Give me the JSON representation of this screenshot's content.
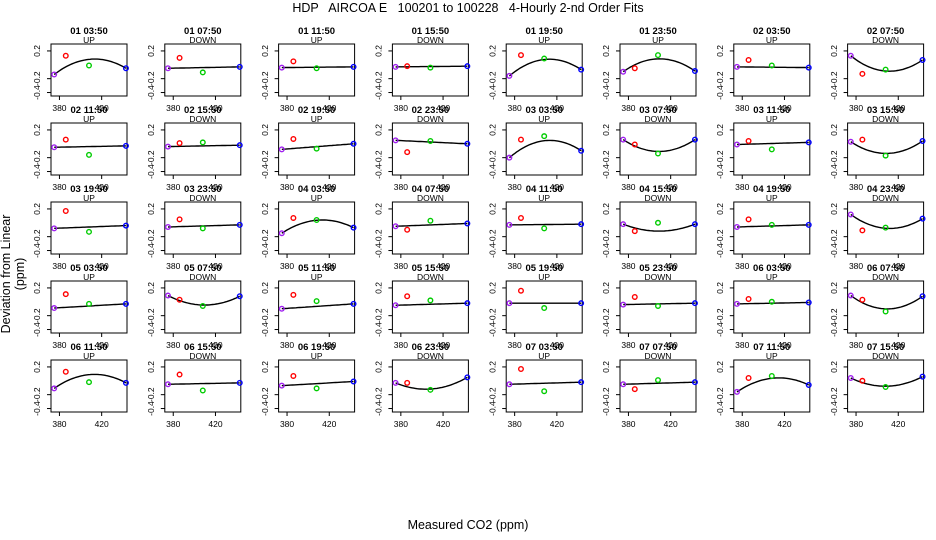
{
  "figure": {
    "title": "HDP   AIRCOA E   100201 to 100228   4-Hourly 2-nd Order Fits",
    "xlabel": "Measured CO2 (ppm)",
    "ylabel": "Deviation from Linear (ppm)"
  },
  "colors": {
    "axis": "#000000",
    "curve": "#000000",
    "point_low": "#a020f0",
    "point_mid_low": "#ff0000",
    "point_mid_high": "#00cc00",
    "point_high": "#0000ff"
  },
  "chart_data": {
    "type": "scatter",
    "layout": "grid 5 rows x 8 columns of small multiples",
    "x_ticks": [
      380,
      420
    ],
    "y_ticks": [
      0.2,
      -0.2,
      -0.4
    ],
    "xlim": [
      372,
      444
    ],
    "ylim": [
      -0.45,
      0.3
    ],
    "x_standards": [
      375,
      386,
      408,
      443
    ],
    "series_names": [
      "low",
      "mid_low",
      "mid_high",
      "high"
    ],
    "panels": [
      {
        "title": "01 03:50",
        "direction": "UP",
        "y": [
          -0.14,
          0.13,
          -0.01,
          -0.05
        ],
        "curvature": -1
      },
      {
        "title": "01 07:50",
        "direction": "DOWN",
        "y": [
          -0.05,
          0.1,
          -0.11,
          -0.03
        ],
        "curvature": 0
      },
      {
        "title": "01 11:50",
        "direction": "UP",
        "y": [
          -0.04,
          0.05,
          -0.05,
          -0.03
        ],
        "curvature": 0
      },
      {
        "title": "01 15:50",
        "direction": "DOWN",
        "y": [
          -0.03,
          -0.02,
          -0.04,
          -0.02
        ],
        "curvature": 0
      },
      {
        "title": "01 19:50",
        "direction": "UP",
        "y": [
          -0.16,
          0.14,
          0.09,
          -0.07
        ],
        "curvature": -1
      },
      {
        "title": "01 23:50",
        "direction": "UP",
        "y": [
          -0.1,
          -0.05,
          0.14,
          -0.09
        ],
        "curvature": -1
      },
      {
        "title": "02 03:50",
        "direction": "UP",
        "y": [
          -0.03,
          0.07,
          -0.01,
          -0.04
        ],
        "curvature": 0
      },
      {
        "title": "02 07:50",
        "direction": "DOWN",
        "y": [
          0.13,
          -0.13,
          -0.07,
          0.07
        ],
        "curvature": 1
      },
      {
        "title": "02 11:50",
        "direction": "UP",
        "y": [
          -0.05,
          0.06,
          -0.16,
          -0.03
        ],
        "curvature": 0
      },
      {
        "title": "02 15:50",
        "direction": "DOWN",
        "y": [
          -0.04,
          0.01,
          0.02,
          -0.02
        ],
        "curvature": 0
      },
      {
        "title": "02 19:50",
        "direction": "UP",
        "y": [
          -0.08,
          0.07,
          -0.07,
          0.0
        ],
        "curvature": 0
      },
      {
        "title": "02 23:50",
        "direction": "DOWN",
        "y": [
          0.05,
          -0.12,
          0.04,
          0.0
        ],
        "curvature": 0
      },
      {
        "title": "03 03:50",
        "direction": "UP",
        "y": [
          -0.2,
          0.06,
          0.11,
          -0.1
        ],
        "curvature": -1
      },
      {
        "title": "03 07:50",
        "direction": "DOWN",
        "y": [
          0.06,
          -0.01,
          -0.14,
          0.06
        ],
        "curvature": 1
      },
      {
        "title": "03 11:50",
        "direction": "UP",
        "y": [
          -0.01,
          0.04,
          -0.08,
          0.02
        ],
        "curvature": 0
      },
      {
        "title": "03 15:50",
        "direction": "DOWN",
        "y": [
          0.03,
          0.06,
          -0.17,
          0.04
        ],
        "curvature": 1
      },
      {
        "title": "03 19:50",
        "direction": "UP",
        "y": [
          -0.08,
          0.17,
          -0.13,
          -0.04
        ],
        "curvature": 0
      },
      {
        "title": "03 23:50",
        "direction": "DOWN",
        "y": [
          -0.06,
          0.05,
          -0.08,
          -0.03
        ],
        "curvature": 0
      },
      {
        "title": "04 03:50",
        "direction": "UP",
        "y": [
          -0.15,
          0.07,
          0.04,
          -0.07
        ],
        "curvature": -1
      },
      {
        "title": "04 07:50",
        "direction": "DOWN",
        "y": [
          -0.05,
          -0.1,
          0.03,
          -0.01
        ],
        "curvature": 0
      },
      {
        "title": "04 11:50",
        "direction": "UP",
        "y": [
          -0.03,
          0.07,
          -0.08,
          -0.02
        ],
        "curvature": 0
      },
      {
        "title": "04 15:50",
        "direction": "DOWN",
        "y": [
          -0.02,
          -0.12,
          0.0,
          -0.02
        ],
        "curvature": 1
      },
      {
        "title": "04 19:50",
        "direction": "UP",
        "y": [
          -0.06,
          0.05,
          -0.03,
          -0.03
        ],
        "curvature": 0
      },
      {
        "title": "04 23:50",
        "direction": "DOWN",
        "y": [
          0.12,
          -0.11,
          -0.07,
          0.06
        ],
        "curvature": 1
      },
      {
        "title": "05 03:50",
        "direction": "UP",
        "y": [
          -0.09,
          0.11,
          -0.03,
          -0.03
        ],
        "curvature": 0
      },
      {
        "title": "05 07:50",
        "direction": "DOWN",
        "y": [
          0.09,
          0.03,
          -0.06,
          0.08
        ],
        "curvature": 1
      },
      {
        "title": "05 11:50",
        "direction": "UP",
        "y": [
          -0.1,
          0.1,
          0.01,
          -0.03
        ],
        "curvature": 0
      },
      {
        "title": "05 15:50",
        "direction": "DOWN",
        "y": [
          -0.05,
          0.08,
          0.02,
          -0.02
        ],
        "curvature": 0
      },
      {
        "title": "05 19:50",
        "direction": "UP",
        "y": [
          -0.02,
          0.16,
          -0.09,
          -0.02
        ],
        "curvature": 0
      },
      {
        "title": "05 23:50",
        "direction": "DOWN",
        "y": [
          -0.04,
          0.07,
          -0.06,
          -0.02
        ],
        "curvature": 0
      },
      {
        "title": "06 03:50",
        "direction": "UP",
        "y": [
          -0.03,
          0.04,
          0.0,
          -0.01
        ],
        "curvature": 0
      },
      {
        "title": "06 07:50",
        "direction": "DOWN",
        "y": [
          0.09,
          0.03,
          -0.14,
          0.08
        ],
        "curvature": 1
      },
      {
        "title": "06 11:50",
        "direction": "UP",
        "y": [
          -0.11,
          0.13,
          -0.02,
          -0.03
        ],
        "curvature": -1
      },
      {
        "title": "06 15:50",
        "direction": "DOWN",
        "y": [
          -0.05,
          0.09,
          -0.14,
          -0.03
        ],
        "curvature": 0
      },
      {
        "title": "06 19:50",
        "direction": "UP",
        "y": [
          -0.07,
          0.07,
          -0.11,
          -0.01
        ],
        "curvature": 0
      },
      {
        "title": "06 23:50",
        "direction": "DOWN",
        "y": [
          -0.03,
          -0.03,
          -0.13,
          0.05
        ],
        "curvature": 1
      },
      {
        "title": "07 03:50",
        "direction": "UP",
        "y": [
          -0.05,
          0.17,
          -0.15,
          -0.02
        ],
        "curvature": 0
      },
      {
        "title": "07 07:50",
        "direction": "DOWN",
        "y": [
          -0.05,
          -0.12,
          0.01,
          -0.02
        ],
        "curvature": 0
      },
      {
        "title": "07 11:50",
        "direction": "UP",
        "y": [
          -0.16,
          0.04,
          0.07,
          -0.06
        ],
        "curvature": -1
      },
      {
        "title": "07 15:50",
        "direction": "DOWN",
        "y": [
          0.04,
          0.0,
          -0.09,
          0.06
        ],
        "curvature": 1
      }
    ]
  }
}
